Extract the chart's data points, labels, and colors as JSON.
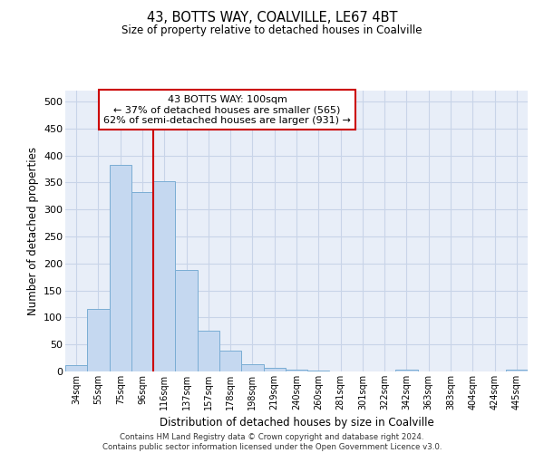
{
  "title1": "43, BOTTS WAY, COALVILLE, LE67 4BT",
  "title2": "Size of property relative to detached houses in Coalville",
  "xlabel": "Distribution of detached houses by size in Coalville",
  "ylabel": "Number of detached properties",
  "categories": [
    "34sqm",
    "55sqm",
    "75sqm",
    "96sqm",
    "116sqm",
    "137sqm",
    "157sqm",
    "178sqm",
    "198sqm",
    "219sqm",
    "240sqm",
    "260sqm",
    "281sqm",
    "301sqm",
    "322sqm",
    "342sqm",
    "363sqm",
    "383sqm",
    "404sqm",
    "424sqm",
    "445sqm"
  ],
  "values": [
    11,
    115,
    383,
    332,
    352,
    188,
    76,
    38,
    13,
    7,
    4,
    1,
    0,
    0,
    0,
    4,
    0,
    0,
    0,
    0,
    4
  ],
  "bar_color": "#c5d8f0",
  "bar_edge_color": "#7aadd4",
  "vline_x": 3.5,
  "vline_color": "#cc0000",
  "annotation_line1": "43 BOTTS WAY: 100sqm",
  "annotation_line2": "← 37% of detached houses are smaller (565)",
  "annotation_line3": "62% of semi-detached houses are larger (931) →",
  "annotation_box_color": "#ffffff",
  "annotation_box_edge_color": "#cc0000",
  "ylim": [
    0,
    520
  ],
  "yticks": [
    0,
    50,
    100,
    150,
    200,
    250,
    300,
    350,
    400,
    450,
    500
  ],
  "grid_color": "#c8d4e8",
  "bg_color": "#e8eef8",
  "footer_line1": "Contains HM Land Registry data © Crown copyright and database right 2024.",
  "footer_line2": "Contains public sector information licensed under the Open Government Licence v3.0."
}
